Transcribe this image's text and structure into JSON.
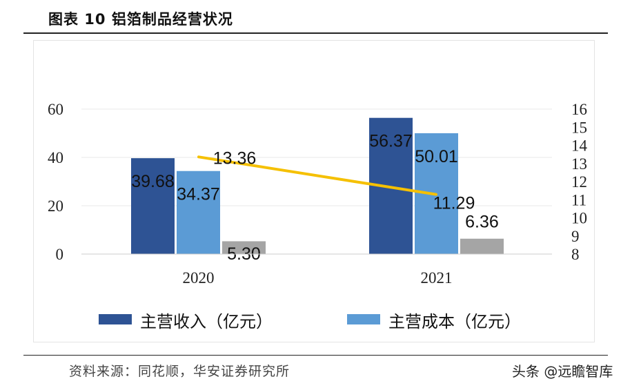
{
  "title": "图表 10 铝箔制品经营状况",
  "source": "资料来源：同花顺，华安证券研究所",
  "watermark": "头条 @远瞻智库",
  "colors": {
    "revenue": "#2e5394",
    "cost": "#5b9bd5",
    "profit": "#a5a5a5",
    "margin_line": "#f5c000",
    "axis_text": "#222222",
    "gridline": "#e8e8e8"
  },
  "chart_data": {
    "type": "bar",
    "categories": [
      "2020",
      "2021"
    ],
    "series": [
      {
        "name": "主营收入（亿元）",
        "axis": "left",
        "values": [
          39.68,
          56.37
        ],
        "labels": [
          "39.68",
          "56.37"
        ]
      },
      {
        "name": "主营成本（亿元）",
        "axis": "left",
        "values": [
          34.37,
          50.01
        ],
        "labels": [
          "34.37",
          "50.01"
        ]
      },
      {
        "name": "",
        "axis": "left",
        "values": [
          5.3,
          6.36
        ],
        "labels": [
          "5.30",
          "6.36"
        ]
      },
      {
        "name": "",
        "axis": "right",
        "type": "line",
        "values": [
          13.36,
          11.29
        ],
        "labels": [
          "13.36",
          "11.29"
        ]
      }
    ],
    "left_axis": {
      "range": [
        0,
        60
      ],
      "ticks": [
        "0",
        "20",
        "40",
        "60"
      ]
    },
    "right_axis": {
      "range": [
        8,
        16
      ],
      "ticks": [
        "8",
        "9",
        "10",
        "11",
        "12",
        "13",
        "14",
        "15",
        "16"
      ]
    },
    "legend": [
      {
        "label": "主营收入（亿元）",
        "series": 0
      },
      {
        "label": "主营成本（亿元）",
        "series": 1
      }
    ],
    "legend_position": "bottom"
  }
}
